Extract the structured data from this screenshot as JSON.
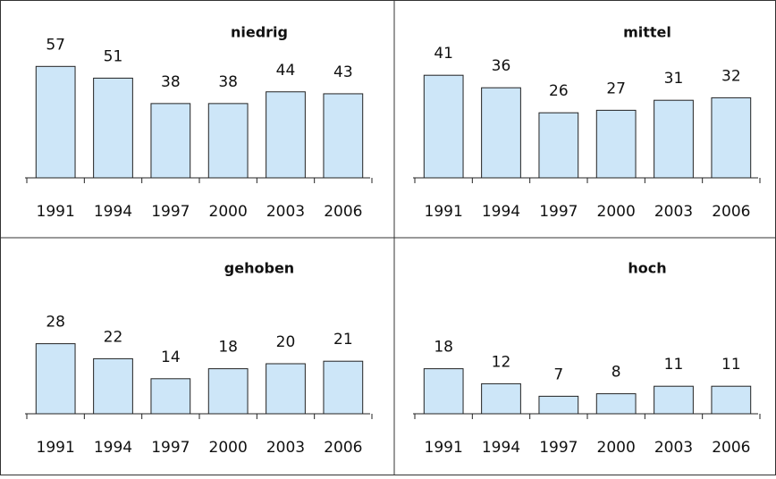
{
  "chart_data": [
    {
      "type": "bar",
      "title": "niedrig",
      "categories": [
        "1991",
        "1994",
        "1997",
        "2000",
        "2003",
        "2006"
      ],
      "values": [
        57,
        51,
        38,
        38,
        44,
        43
      ],
      "color": "#cde6f8",
      "ylim": [
        0,
        64
      ]
    },
    {
      "type": "bar",
      "title": "mittel",
      "categories": [
        "1991",
        "1994",
        "1997",
        "2000",
        "2003",
        "2006"
      ],
      "values": [
        41,
        36,
        26,
        27,
        31,
        32
      ],
      "color": "#cde6f8",
      "ylim": [
        0,
        50
      ]
    },
    {
      "type": "bar",
      "title": "gehoben",
      "categories": [
        "1991",
        "1994",
        "1997",
        "2000",
        "2003",
        "2006"
      ],
      "values": [
        28,
        22,
        14,
        18,
        20,
        21
      ],
      "color": "#cde6f8",
      "ylim": [
        0,
        50
      ]
    },
    {
      "type": "bar",
      "title": "hoch",
      "categories": [
        "1991",
        "1994",
        "1997",
        "2000",
        "2003",
        "2006"
      ],
      "values": [
        18,
        12,
        7,
        8,
        11,
        11
      ],
      "color": "#cde6f8",
      "ylim": [
        0,
        50
      ]
    }
  ]
}
